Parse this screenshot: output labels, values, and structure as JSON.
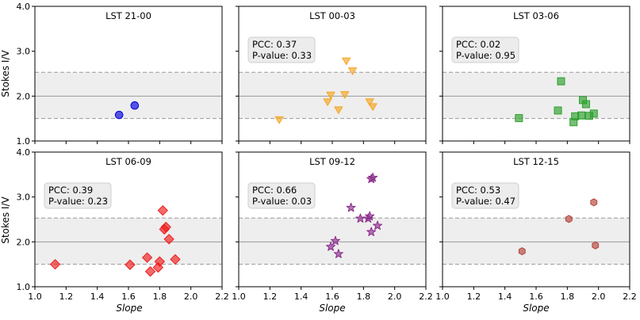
{
  "chart_data": {
    "type": "scatter",
    "shared": {
      "ylabel": "Stokes I/V",
      "xlabel": "Slope",
      "xlim": [
        1.0,
        2.2
      ],
      "ylim": [
        1.0,
        4.0
      ],
      "xticks": [
        1.0,
        1.2,
        1.4,
        1.6,
        1.8,
        2.0,
        2.2
      ],
      "xtick_labels": [
        "1.0",
        "1.2",
        "1.4",
        "1.6",
        "1.8",
        "2.0",
        "2.2"
      ],
      "yticks": [
        1.0,
        2.0,
        3.0,
        4.0
      ],
      "ytick_labels": [
        "1.0",
        "2.0",
        "3.0",
        "4.0"
      ],
      "band": {
        "low": 1.5,
        "mid": 2.0,
        "high": 2.53
      }
    },
    "panels": [
      {
        "title": "LST 21-00",
        "marker": "circle",
        "color": "#0000dd",
        "stats": null,
        "points": [
          {
            "x": 1.54,
            "y": 1.58
          },
          {
            "x": 1.64,
            "y": 1.79
          }
        ]
      },
      {
        "title": "LST 00-03",
        "marker": "triangle-down",
        "color": "#f5a623",
        "stats": {
          "pcc": "PCC: 0.37",
          "pvalue": "P-value: 0.33"
        },
        "points": [
          {
            "x": 1.26,
            "y": 1.47
          },
          {
            "x": 1.57,
            "y": 1.87
          },
          {
            "x": 1.59,
            "y": 2.02
          },
          {
            "x": 1.64,
            "y": 1.69
          },
          {
            "x": 1.68,
            "y": 2.03
          },
          {
            "x": 1.69,
            "y": 2.78
          },
          {
            "x": 1.73,
            "y": 2.56
          },
          {
            "x": 1.84,
            "y": 1.87
          },
          {
            "x": 1.86,
            "y": 1.76
          }
        ]
      },
      {
        "title": "LST 03-06",
        "marker": "square",
        "color": "#2ca02c",
        "stats": {
          "pcc": "PCC: 0.02",
          "pvalue": "P-value: 0.95"
        },
        "points": [
          {
            "x": 1.49,
            "y": 1.51
          },
          {
            "x": 1.74,
            "y": 1.68
          },
          {
            "x": 1.76,
            "y": 2.33
          },
          {
            "x": 1.84,
            "y": 1.42
          },
          {
            "x": 1.85,
            "y": 1.55
          },
          {
            "x": 1.89,
            "y": 1.57
          },
          {
            "x": 1.9,
            "y": 1.91
          },
          {
            "x": 1.92,
            "y": 1.82
          },
          {
            "x": 1.94,
            "y": 1.56
          },
          {
            "x": 1.97,
            "y": 1.61
          }
        ]
      },
      {
        "title": "LST 06-09",
        "marker": "diamond",
        "color": "#ee1c1c",
        "stats": {
          "pcc": "PCC: 0.39",
          "pvalue": "P-value: 0.23"
        },
        "points": [
          {
            "x": 1.13,
            "y": 1.5
          },
          {
            "x": 1.61,
            "y": 1.49
          },
          {
            "x": 1.72,
            "y": 1.65
          },
          {
            "x": 1.74,
            "y": 1.34
          },
          {
            "x": 1.79,
            "y": 1.43
          },
          {
            "x": 1.8,
            "y": 1.56
          },
          {
            "x": 1.82,
            "y": 2.7
          },
          {
            "x": 1.83,
            "y": 2.28
          },
          {
            "x": 1.84,
            "y": 2.33
          },
          {
            "x": 1.86,
            "y": 2.06
          },
          {
            "x": 1.9,
            "y": 1.61
          }
        ]
      },
      {
        "title": "LST 09-12",
        "marker": "star",
        "color": "#8b2c8b",
        "stats": {
          "pcc": "PCC: 0.66",
          "pvalue": "P-value: 0.03"
        },
        "points": [
          {
            "x": 1.59,
            "y": 1.89
          },
          {
            "x": 1.62,
            "y": 2.02
          },
          {
            "x": 1.64,
            "y": 1.73
          },
          {
            "x": 1.72,
            "y": 2.76
          },
          {
            "x": 1.78,
            "y": 2.52
          },
          {
            "x": 1.83,
            "y": 2.52
          },
          {
            "x": 1.84,
            "y": 2.57
          },
          {
            "x": 1.85,
            "y": 2.22
          },
          {
            "x": 1.85,
            "y": 3.4
          },
          {
            "x": 1.86,
            "y": 3.43
          },
          {
            "x": 1.89,
            "y": 2.36
          }
        ]
      },
      {
        "title": "LST 12-15",
        "marker": "hexagon",
        "color": "#b5443a",
        "stats": {
          "pcc": "PCC: 0.53",
          "pvalue": "P-value: 0.47"
        },
        "points": [
          {
            "x": 1.51,
            "y": 1.79
          },
          {
            "x": 1.81,
            "y": 2.51
          },
          {
            "x": 1.97,
            "y": 2.88
          },
          {
            "x": 1.98,
            "y": 1.92
          }
        ]
      }
    ]
  }
}
